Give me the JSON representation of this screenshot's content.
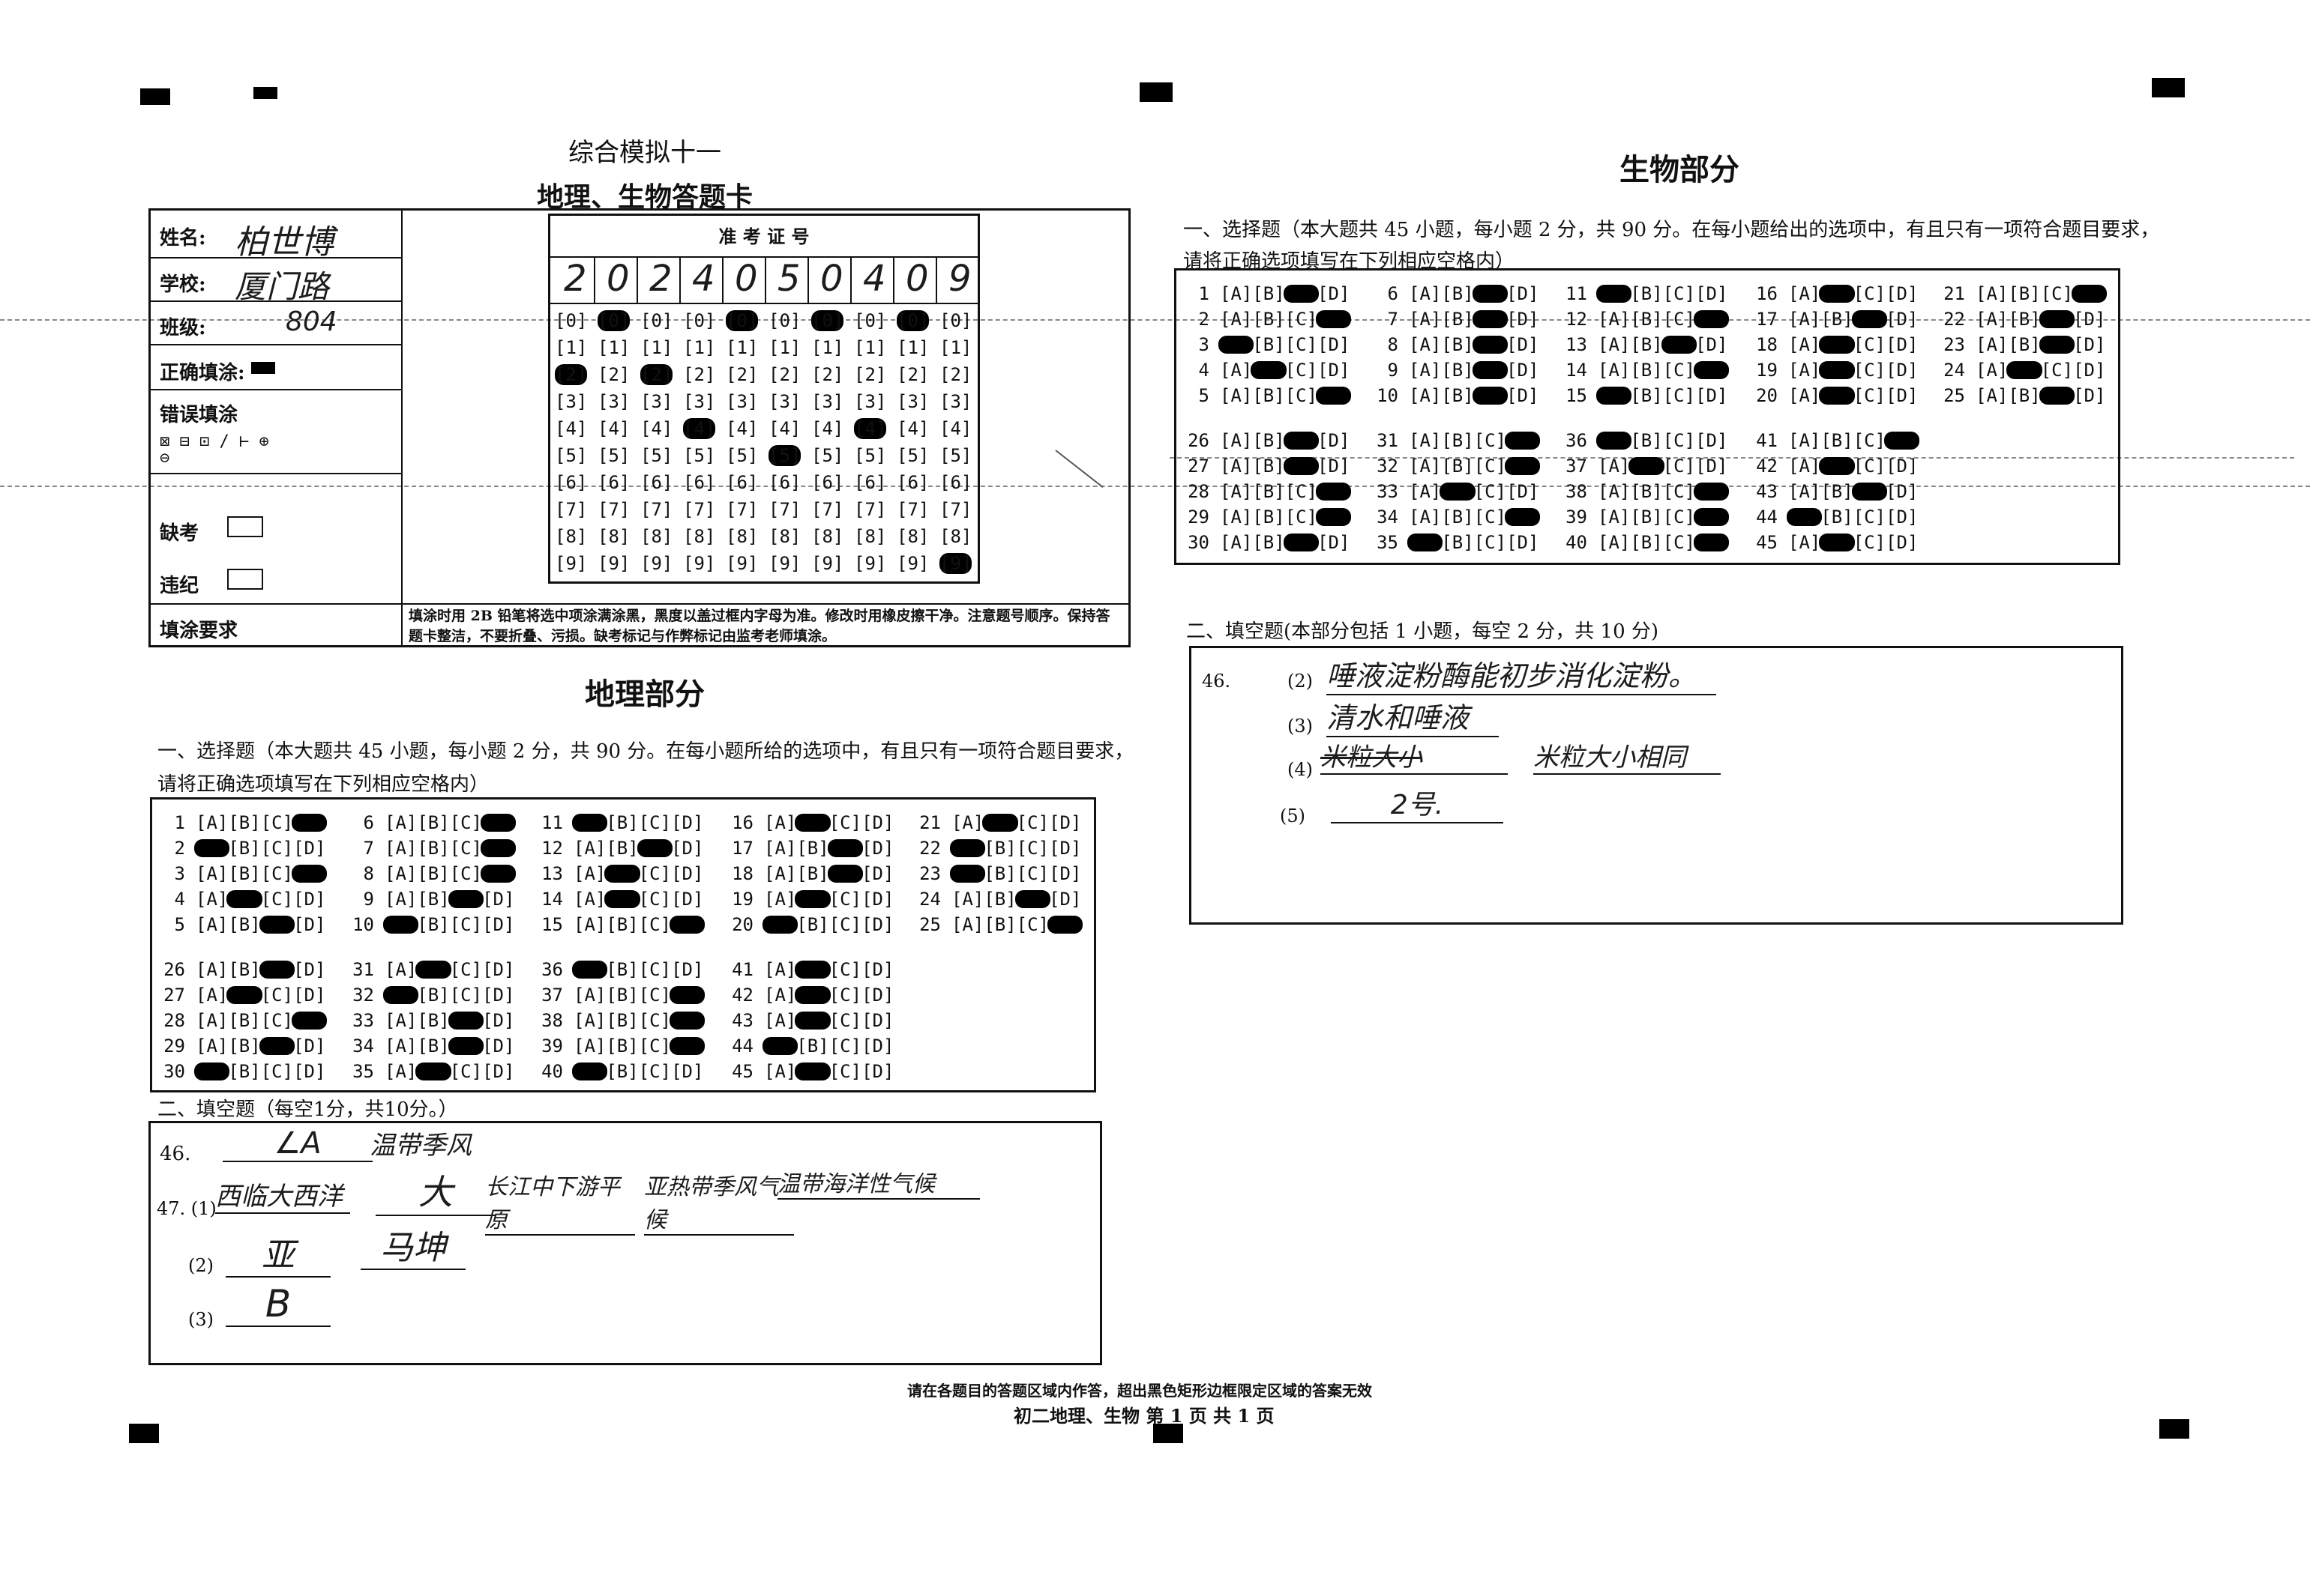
{
  "header": {
    "exam_title": "综合模拟十一",
    "card_title": "地理、生物答题卡"
  },
  "info": {
    "name_label": "姓名:",
    "name_value": "柏世博",
    "school_label": "学校:",
    "school_value": "厦门路",
    "class_label": "班级:",
    "class_value": "804",
    "correct_label": "正确填涂:",
    "wrong_label": "错误填涂",
    "wrong_icons": "⊠ ⊟ ⊡ / ⊢ ⊕ ⊖",
    "absent_label": "缺考",
    "violation_label": "违纪",
    "rules_label": "填涂要求",
    "rules_text": "填涂时用 2B 铅笔将选中项涂满涂黑，黑度以盖过框内字母为准。修改时用橡皮擦干净。注意题号顺序。保持答题卡整洁，不要折叠、污损。缺考标记与作弊标记由监考老师填涂。"
  },
  "exam_id": {
    "label": "准 考 证 号",
    "digits": [
      "2",
      "0",
      "2",
      "4",
      "0",
      "5",
      "0",
      "4",
      "0",
      "9"
    ]
  },
  "geography": {
    "title": "地理部分",
    "mc_heading": "一、选择题（本大题共 45 小题，每小题 2 分，共 90 分。在每小题所给的选项中，有且只有一项符合题目要求，",
    "mc_heading2": "请将正确选项填写在下列相应空格内）",
    "answers": [
      "D",
      "A",
      "D",
      "B",
      "C",
      "D",
      "D",
      "D",
      "C",
      "A",
      "A",
      "C",
      "B",
      "B",
      "D",
      "B",
      "C",
      "C",
      "B",
      "A",
      "B",
      "A",
      "A",
      "C",
      "D",
      "C",
      "B",
      "D",
      "C",
      "A",
      "B",
      "A",
      "C",
      "C",
      "B",
      "A",
      "D",
      "D",
      "D",
      "A",
      "B",
      "B",
      "B",
      "A",
      "B"
    ],
    "fill_heading": "二、填空题（每空1分，共10分。）",
    "q46_num": "46.",
    "q46_a": "∠A",
    "q46_b": "温带季风",
    "q47_num": "47. (1)",
    "q47_1a": "西临大西洋",
    "q47_1b": "大",
    "q47_1c": "长江中下游平原",
    "q47_1d": "亚热带季风气候",
    "q47_1e": "温带海洋性气候",
    "q47_2_num": "(2)",
    "q47_2a": "亚",
    "q47_2b": "马坤",
    "q47_3_num": "(3)",
    "q47_3a": "B"
  },
  "biology": {
    "title": "生物部分",
    "mc_heading": "一、选择题（本大题共 45 小题，每小题 2 分，共 90 分。在每小题给出的选项中，有且只有一项符合题目要求，",
    "mc_heading2": "请将正确选项填写在下列相应空格内）",
    "answers": [
      "C",
      "D",
      "A",
      "B",
      "D",
      "C",
      "C",
      "C",
      "C",
      "C",
      "A",
      "D",
      "C",
      "D",
      "A",
      "B",
      "C",
      "B",
      "B",
      "B",
      "D",
      "C",
      "C",
      "B",
      "C",
      "C",
      "C",
      "D",
      "D",
      "C",
      "D",
      "D",
      "B",
      "D",
      "A",
      "A",
      "B",
      "D",
      "D",
      "D",
      "D",
      "B",
      "C",
      "A",
      "B"
    ],
    "fill_heading": "二、填空题(本部分包括 1 小题，每空 2 分，共 10 分)",
    "q46_num": "46.",
    "q46_2_num": "(2)",
    "q46_2": "唾液淀粉酶能初步消化淀粉。",
    "q46_3_num": "(3)",
    "q46_3": "清水和唾液",
    "q46_4_num": "(4)",
    "q46_4a": "米粒大小",
    "q46_4b": "米粒大小相同",
    "q46_5_num": "(5)",
    "q46_5": "2号."
  },
  "footer": {
    "notice": "请在各题目的答题区域内作答，超出黑色矩形边框限定区域的答案无效",
    "page": "初二地理、生物  第 1 页  共 1 页"
  }
}
